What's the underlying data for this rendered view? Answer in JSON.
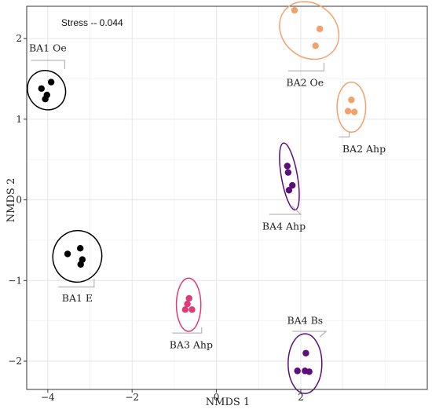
{
  "chart_data": {
    "type": "scatter",
    "title": "",
    "annotation": "Stress -- 0.044",
    "xlabel": "NMDS 1",
    "ylabel": "NMDS 2",
    "xlim": [
      -4.5,
      5.0
    ],
    "ylim": [
      -2.35,
      2.4
    ],
    "x_ticks": [
      -4,
      -2,
      0,
      2
    ],
    "y_ticks": [
      -2,
      -1,
      0,
      1,
      2
    ],
    "grid": true,
    "groups": [
      {
        "name": "BA1 Oe",
        "color": "#000000",
        "points": [
          [
            -4.15,
            1.38
          ],
          [
            -3.92,
            1.46
          ],
          [
            -4.02,
            1.3
          ],
          [
            -4.06,
            1.25
          ]
        ],
        "ellipse": {
          "cx": -4.03,
          "cy": 1.36,
          "rx": 0.44,
          "ry": 0.25,
          "angle": 35
        },
        "label_pos": [
          -4.0,
          1.88
        ],
        "leader": [
          [
            -4.4,
            1.73
          ],
          [
            -3.6,
            1.73
          ],
          [
            -3.6,
            1.62
          ]
        ]
      },
      {
        "name": "BA2 Oe",
        "color": "#f3a06a",
        "points": [
          [
            1.85,
            2.35
          ],
          [
            2.45,
            2.12
          ],
          [
            2.35,
            1.91
          ]
        ],
        "ellipse": {
          "cx": 2.2,
          "cy": 2.1,
          "rx": 0.75,
          "ry": 0.33,
          "angle": -40
        },
        "label_pos": [
          2.1,
          1.45
        ],
        "leader": [
          [
            1.7,
            1.6
          ],
          [
            2.55,
            1.6
          ],
          [
            2.55,
            1.7
          ]
        ]
      },
      {
        "name": "BA2 Ahp",
        "color": "#f3a06a",
        "points": [
          [
            3.2,
            1.24
          ],
          [
            3.12,
            1.1
          ],
          [
            3.27,
            1.09
          ]
        ],
        "ellipse": {
          "cx": 3.2,
          "cy": 1.15,
          "rx": 0.34,
          "ry": 0.31,
          "angle": 0
        },
        "label_pos": [
          3.5,
          0.63
        ],
        "leader": [
          [
            2.9,
            0.78
          ],
          [
            3.15,
            0.78
          ],
          [
            3.15,
            0.84
          ]
        ]
      },
      {
        "name": "BA4 Ahp",
        "color": "#5c0f78",
        "points": [
          [
            1.68,
            0.42
          ],
          [
            1.7,
            0.34
          ],
          [
            1.8,
            0.18
          ],
          [
            1.72,
            0.12
          ]
        ],
        "ellipse": {
          "cx": 1.73,
          "cy": 0.29,
          "rx": 0.19,
          "ry": 0.42,
          "angle": 10
        },
        "label_pos": [
          1.6,
          -0.33
        ],
        "leader": [
          [
            1.25,
            -0.18
          ],
          [
            2.0,
            -0.18
          ],
          [
            1.8,
            -0.08
          ]
        ]
      },
      {
        "name": "BA1 E",
        "color": "#000000",
        "points": [
          [
            -3.53,
            -0.67
          ],
          [
            -3.23,
            -0.6
          ],
          [
            -3.18,
            -0.74
          ],
          [
            -3.22,
            -0.8
          ]
        ],
        "ellipse": {
          "cx": -3.3,
          "cy": -0.7,
          "rx": 0.58,
          "ry": 0.32,
          "angle": -10
        },
        "label_pos": [
          -3.3,
          -1.22
        ],
        "leader": [
          [
            -3.75,
            -1.08
          ],
          [
            -2.9,
            -1.08
          ],
          [
            -2.9,
            -0.98
          ]
        ]
      },
      {
        "name": "BA3 Ahp",
        "color": "#de3b7a",
        "points": [
          [
            -0.65,
            -1.22
          ],
          [
            -0.69,
            -1.29
          ],
          [
            -0.74,
            -1.36
          ],
          [
            -0.58,
            -1.36
          ]
        ],
        "ellipse": {
          "cx": -0.66,
          "cy": -1.3,
          "rx": 0.29,
          "ry": 0.33,
          "angle": 0
        },
        "label_pos": [
          -0.6,
          -1.8
        ],
        "leader": [
          [
            -1.05,
            -1.65
          ],
          [
            -0.35,
            -1.65
          ],
          [
            -0.35,
            -1.58
          ]
        ]
      },
      {
        "name": "BA4 Bs",
        "color": "#5c0f78",
        "points": [
          [
            2.12,
            -1.9
          ],
          [
            1.92,
            -2.12
          ],
          [
            2.1,
            -2.12
          ],
          [
            2.2,
            -2.13
          ]
        ],
        "ellipse": {
          "cx": 2.1,
          "cy": -2.03,
          "rx": 0.4,
          "ry": 0.37,
          "angle": 0
        },
        "label_pos": [
          2.1,
          -1.5
        ],
        "leader": [
          [
            1.8,
            -1.63
          ],
          [
            2.6,
            -1.63
          ],
          [
            2.45,
            -1.7
          ]
        ]
      }
    ]
  }
}
